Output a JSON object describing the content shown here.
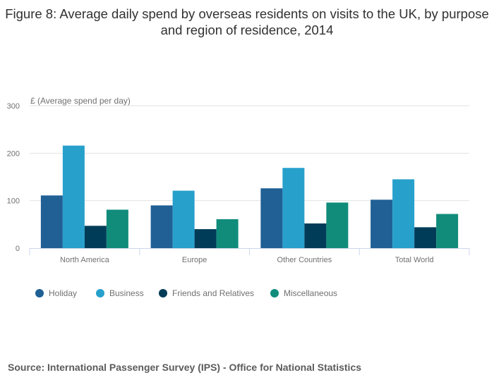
{
  "chart_data": {
    "type": "bar",
    "title": "Figure 8: Average daily spend by overseas residents on visits to the UK, by purpose and region of residence, 2014",
    "ylabel": "£ (Average spend per day)",
    "xlabel": "",
    "ylim": [
      0,
      300
    ],
    "yticks": [
      0,
      100,
      200,
      300
    ],
    "grid": true,
    "legend_position": "bottom-left",
    "categories": [
      "North America",
      "Europe",
      "Other Countries",
      "Total World"
    ],
    "series": [
      {
        "name": "Holiday",
        "color": "#206095",
        "values": [
          111,
          90,
          126,
          102
        ]
      },
      {
        "name": "Business",
        "color": "#27a0cc",
        "values": [
          216,
          121,
          169,
          145
        ]
      },
      {
        "name": "Friends and Relatives",
        "color": "#003c57",
        "values": [
          47,
          40,
          52,
          44
        ]
      },
      {
        "name": "Miscellaneous",
        "color": "#118c7b",
        "values": [
          81,
          61,
          96,
          72
        ]
      }
    ]
  },
  "source": "Source: International Passenger Survey (IPS) - Office for National Statistics"
}
